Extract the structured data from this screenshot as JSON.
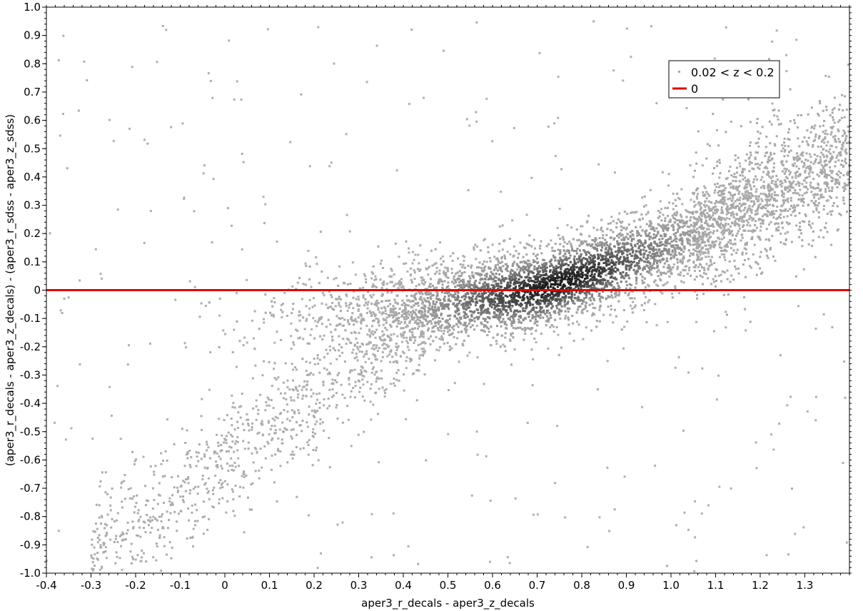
{
  "chart_data": {
    "type": "scatter",
    "title": "",
    "xlabel": "aper3_r_decals - aper3_z_decals",
    "ylabel": "(aper3_r_decals - aper3_z_decals) - (aper3_r_sdss - aper3_z_sdss)",
    "xlim": [
      -0.4,
      1.4
    ],
    "ylim": [
      -1.0,
      1.0
    ],
    "x_ticks": [
      "-0.4",
      "-0.3",
      "-0.2",
      "-0.1",
      "0",
      "0.1",
      "0.2",
      "0.3",
      "0.4",
      "0.5",
      "0.6",
      "0.7",
      "0.8",
      "0.9",
      "1.0",
      "1.1",
      "1.2",
      "1.3"
    ],
    "y_ticks": [
      "-1.0",
      "-0.9",
      "-0.8",
      "-0.7",
      "-0.6",
      "-0.5",
      "-0.4",
      "-0.3",
      "-0.2",
      "-0.1",
      "0",
      "0.1",
      "0.2",
      "0.3",
      "0.4",
      "0.5",
      "0.6",
      "0.7",
      "0.8",
      "0.9",
      "1.0"
    ],
    "grid": false,
    "legend_position": "top-right",
    "series": [
      {
        "name": "0.02 < z < 0.2",
        "kind": "density-scatter",
        "color": "#a8a8a8",
        "core_color": "#222222",
        "density_trend": {
          "x": [
            0.0,
            0.3,
            0.5,
            0.7,
            0.9,
            1.1,
            1.3
          ],
          "y_center": [
            -0.12,
            -0.08,
            -0.05,
            0.0,
            0.1,
            0.23,
            0.4
          ]
        },
        "peak": {
          "x": 0.73,
          "y": 0.0
        }
      },
      {
        "name": "0",
        "kind": "hline",
        "y": 0,
        "color": "#e00000"
      }
    ]
  }
}
